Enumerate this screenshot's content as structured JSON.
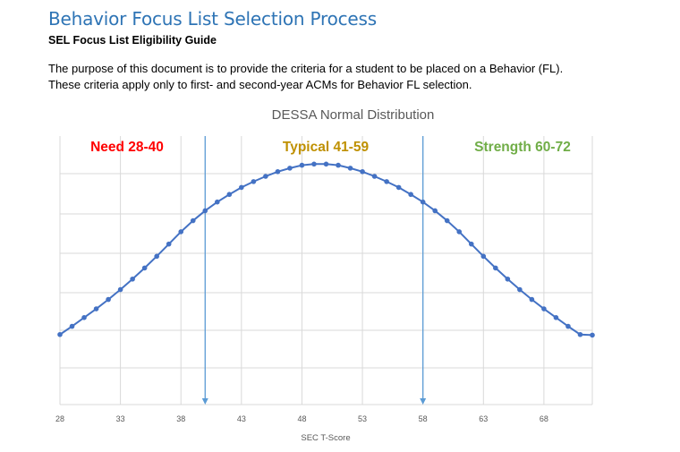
{
  "document": {
    "title": "Behavior Focus List Selection Process",
    "subtitle": "SEL Focus List Eligibility Guide",
    "paragraph_lines": [
      "The purpose of this document is to provide the criteria for a student to be placed on a Behavior (FL).",
      "These criteria apply only to first- and second-year ACMs for Behavior FL selection."
    ]
  },
  "chart_data": {
    "type": "line",
    "title": "DESSA Normal Distribution",
    "xlabel": "SEC T-Score",
    "ylabel": "",
    "xlim": [
      28,
      72
    ],
    "x_ticks": [
      28,
      33,
      38,
      43,
      48,
      53,
      58,
      63,
      68
    ],
    "grid": true,
    "series": [
      {
        "color": "#4472c4",
        "x": [
          28,
          29,
          30,
          31,
          32,
          33,
          34,
          35,
          36,
          37,
          38,
          39,
          40,
          41,
          42,
          43,
          44,
          45,
          46,
          47,
          48,
          49,
          50,
          51,
          52,
          53,
          54,
          55,
          56,
          57,
          58,
          59,
          60,
          61,
          62,
          63,
          64,
          65,
          66,
          67,
          68,
          69,
          70,
          71,
          72
        ],
        "y": [
          0.0,
          0.014,
          0.029,
          0.044,
          0.06,
          0.077,
          0.095,
          0.114,
          0.134,
          0.155,
          0.176,
          0.195,
          0.212,
          0.227,
          0.24,
          0.252,
          0.262,
          0.271,
          0.279,
          0.285,
          0.29,
          0.292,
          0.292,
          0.29,
          0.285,
          0.279,
          0.271,
          0.262,
          0.252,
          0.24,
          0.227,
          0.212,
          0.195,
          0.176,
          0.155,
          0.134,
          0.114,
          0.095,
          0.077,
          0.06,
          0.044,
          0.029,
          0.014,
          0.0,
          -0.001
        ]
      }
    ],
    "ylim": [
      -0.12,
      0.34
    ],
    "vertical_markers": [
      40,
      58
    ],
    "bands": [
      {
        "label": "Need 28-40",
        "color": "#ff0000"
      },
      {
        "label": "Typical 41-59",
        "color": "#bf9000"
      },
      {
        "label": "Strength 60-72",
        "color": "#70ad47"
      }
    ],
    "marker_color": "#5b9bd5",
    "axis_color": "#d9d9d9"
  }
}
